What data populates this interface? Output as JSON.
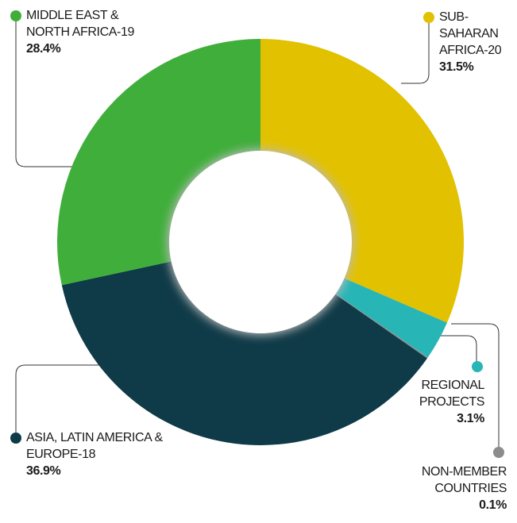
{
  "chart_data": {
    "type": "donut",
    "categories": [
      "SUB-SAHARAN AFRICA-20",
      "REGIONAL PROJECTS",
      "NON-MEMBER COUNTRIES",
      "ASIA, LATIN AMERICA & EUROPE-18",
      "MIDDLE EAST & NORTH AFRICA-19"
    ],
    "values": [
      31.5,
      3.1,
      0.1,
      36.9,
      28.4
    ],
    "value_labels": [
      "31.5%",
      "3.1%",
      "0.1%",
      "36.9%",
      "28.4%"
    ],
    "colors": [
      "#e2c100",
      "#27b5b6",
      "#8c8c8c",
      "#0f3a47",
      "#3fae3a"
    ]
  }
}
